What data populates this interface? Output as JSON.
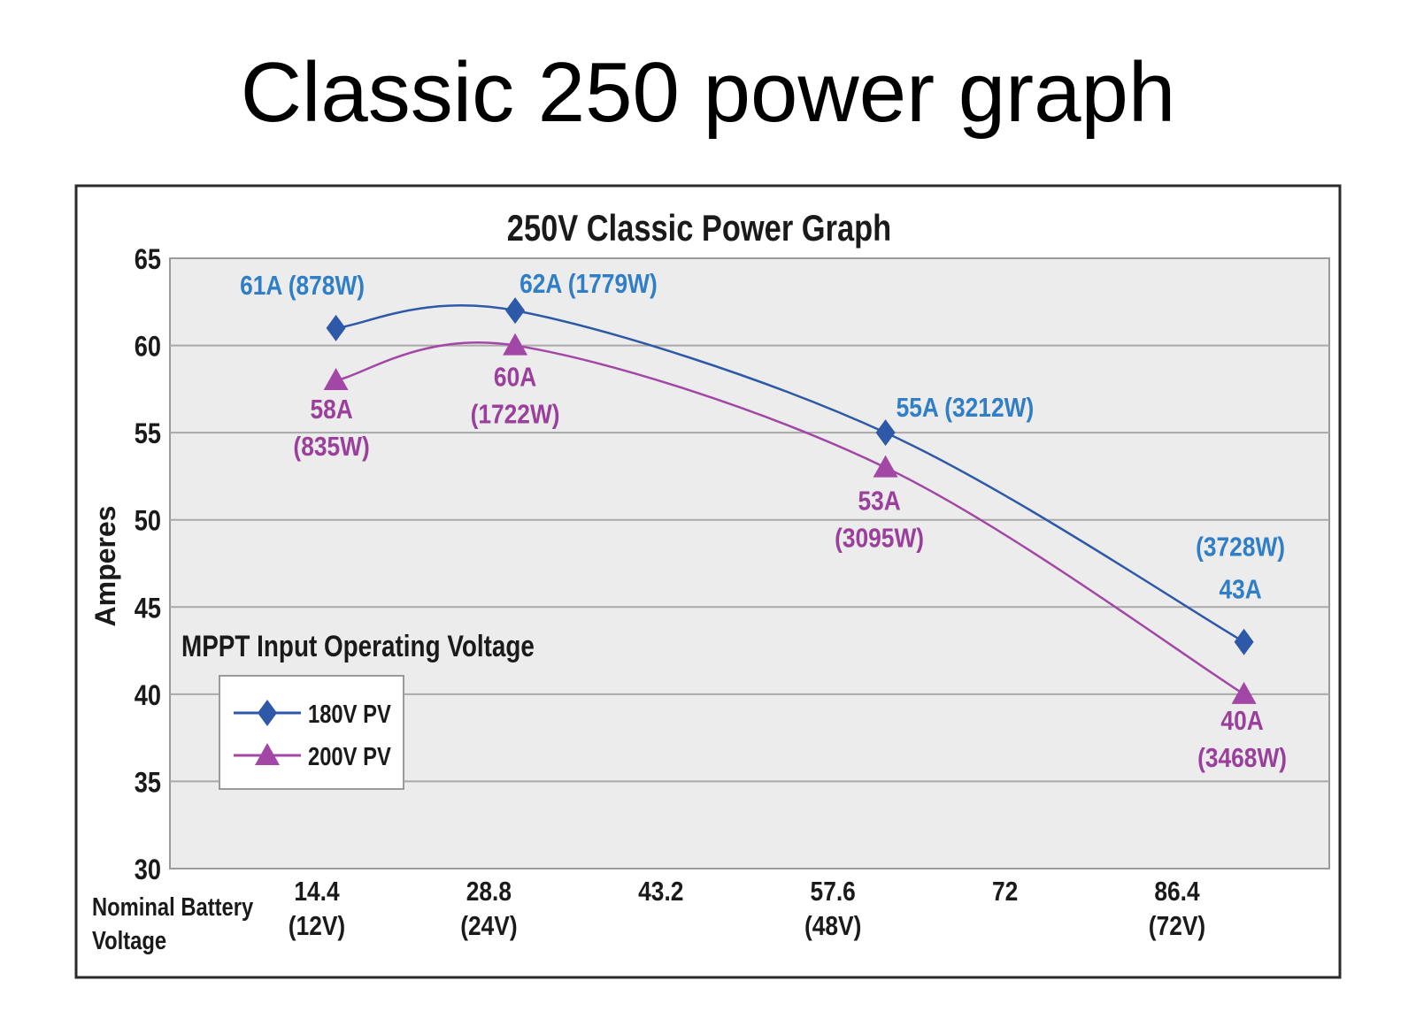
{
  "slide": {
    "title": "Classic 250 power graph"
  },
  "chart_data": {
    "type": "line",
    "title": "250V Classic Power Graph",
    "ylabel": "Amperes",
    "xlabel": "Nominal Battery Voltage",
    "ylim": [
      30,
      65
    ],
    "yticks": [
      30,
      35,
      40,
      45,
      50,
      55,
      60,
      65
    ],
    "grid": true,
    "xticks": [
      {
        "value": 14.4,
        "line1": "14.4",
        "line2": "(12V)"
      },
      {
        "value": 28.8,
        "line1": "28.8",
        "line2": "(24V)"
      },
      {
        "value": 43.2,
        "line1": "43.2",
        "line2": ""
      },
      {
        "value": 57.6,
        "line1": "57.6",
        "line2": "(48V)"
      },
      {
        "value": 72,
        "line1": "72",
        "line2": ""
      },
      {
        "value": 86.4,
        "line1": "86.4",
        "line2": "(72V)"
      }
    ],
    "annotation": "MPPT Input Operating Voltage",
    "legend": {
      "placement": "left"
    },
    "series": [
      {
        "name": "180V PV",
        "color": "#2e59a8",
        "label_color": "#2f7ec6",
        "marker": "diamond",
        "points": [
          {
            "x": 16,
            "y": 61,
            "label": [
              "61A (878W)"
            ]
          },
          {
            "x": 31,
            "y": 62,
            "label": [
              "62A (1779W)"
            ]
          },
          {
            "x": 62,
            "y": 55,
            "label": [
              "55A (3212W)"
            ]
          },
          {
            "x": 92,
            "y": 43,
            "label": [
              "(3728W)",
              "43A"
            ]
          }
        ]
      },
      {
        "name": "200V PV",
        "color": "#a347a6",
        "label_color": "#9a3f9c",
        "marker": "triangle",
        "points": [
          {
            "x": 16,
            "y": 58,
            "label": [
              "58A",
              "(835W)"
            ]
          },
          {
            "x": 31,
            "y": 60,
            "label": [
              "60A",
              "(1722W)"
            ]
          },
          {
            "x": 62,
            "y": 53,
            "label": [
              "53A",
              "(3095W)"
            ]
          },
          {
            "x": 92,
            "y": 40,
            "label": [
              "40A",
              "(3468W)"
            ]
          }
        ]
      }
    ]
  }
}
